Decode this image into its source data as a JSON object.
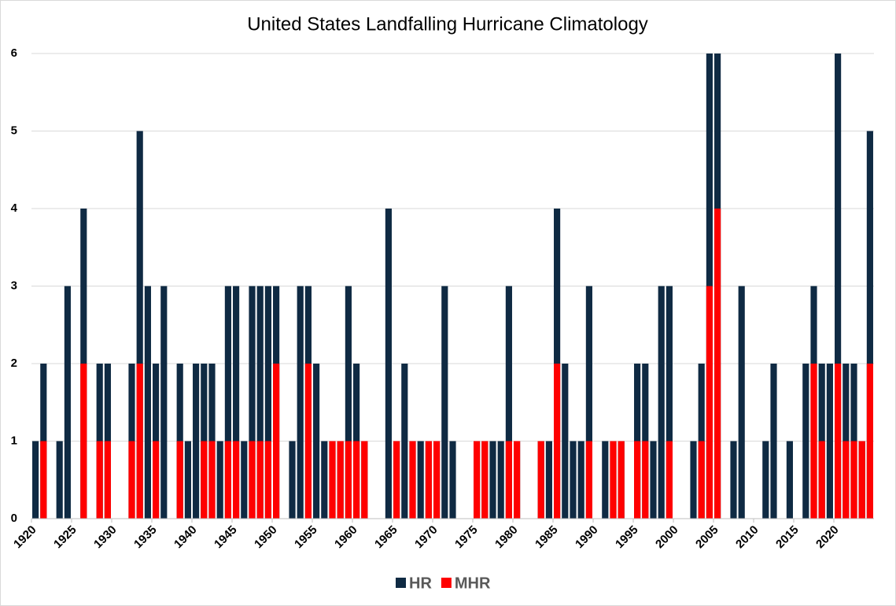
{
  "chart_data": {
    "type": "bar",
    "title": "United States Landfalling Hurricane Climatology",
    "categories": [
      "1920",
      null,
      null,
      null,
      null,
      "1925",
      null,
      null,
      null,
      null,
      "1930",
      null,
      null,
      null,
      null,
      "1935",
      null,
      null,
      null,
      null,
      "1940",
      null,
      null,
      null,
      null,
      "1945",
      null,
      null,
      null,
      null,
      "1950",
      null,
      null,
      null,
      null,
      "1955",
      null,
      null,
      null,
      null,
      "1960",
      null,
      null,
      null,
      null,
      "1965",
      null,
      null,
      null,
      null,
      "1970",
      null,
      null,
      null,
      null,
      "1975",
      null,
      null,
      null,
      null,
      "1980",
      null,
      null,
      null,
      null,
      "1985",
      null,
      null,
      null,
      null,
      "1990",
      null,
      null,
      null,
      null,
      "1995",
      null,
      null,
      null,
      null,
      "2000",
      null,
      null,
      null,
      null,
      "2005",
      null,
      null,
      null,
      null,
      "2010",
      null,
      null,
      null,
      null,
      "2015",
      null,
      null,
      null,
      null,
      "2020",
      null,
      null,
      null,
      null
    ],
    "series": [
      {
        "name": "HR",
        "color": "#0f2a43",
        "values": [
          1,
          2,
          0,
          1,
          3,
          0,
          4,
          0,
          2,
          2,
          0,
          0,
          2,
          5,
          3,
          2,
          3,
          0,
          2,
          1,
          2,
          2,
          2,
          1,
          3,
          3,
          1,
          3,
          3,
          3,
          3,
          0,
          1,
          3,
          3,
          2,
          1,
          1,
          1,
          3,
          2,
          1,
          0,
          0,
          4,
          1,
          2,
          1,
          1,
          1,
          1,
          3,
          1,
          0,
          0,
          1,
          1,
          1,
          1,
          3,
          1,
          0,
          0,
          1,
          1,
          4,
          2,
          1,
          1,
          3,
          0,
          1,
          1,
          1,
          0,
          2,
          2,
          1,
          3,
          3,
          0,
          0,
          1,
          2,
          6,
          6,
          0,
          1,
          3,
          0,
          0,
          1,
          2,
          0,
          1,
          0,
          2,
          3,
          2,
          2,
          6,
          2,
          2,
          1,
          5
        ]
      },
      {
        "name": "MHR",
        "color": "#ff0000",
        "values": [
          0,
          1,
          0,
          0,
          0,
          0,
          2,
          0,
          1,
          1,
          0,
          0,
          1,
          2,
          0,
          1,
          0,
          0,
          1,
          0,
          0,
          1,
          1,
          0,
          1,
          1,
          0,
          1,
          1,
          1,
          2,
          0,
          0,
          0,
          2,
          0,
          0,
          1,
          1,
          1,
          1,
          1,
          0,
          0,
          0,
          1,
          0,
          1,
          0,
          1,
          1,
          0,
          0,
          0,
          0,
          1,
          1,
          0,
          0,
          1,
          1,
          0,
          0,
          1,
          0,
          2,
          0,
          0,
          0,
          1,
          0,
          0,
          1,
          1,
          0,
          1,
          1,
          0,
          0,
          1,
          0,
          0,
          0,
          1,
          3,
          4,
          0,
          0,
          0,
          0,
          0,
          0,
          0,
          0,
          0,
          0,
          0,
          2,
          1,
          0,
          2,
          1,
          1,
          1,
          2
        ]
      }
    ],
    "ylim": [
      0,
      6
    ],
    "yticks": [
      0,
      1,
      2,
      3,
      4,
      5,
      6
    ],
    "grid": true,
    "legend": "bottom"
  }
}
